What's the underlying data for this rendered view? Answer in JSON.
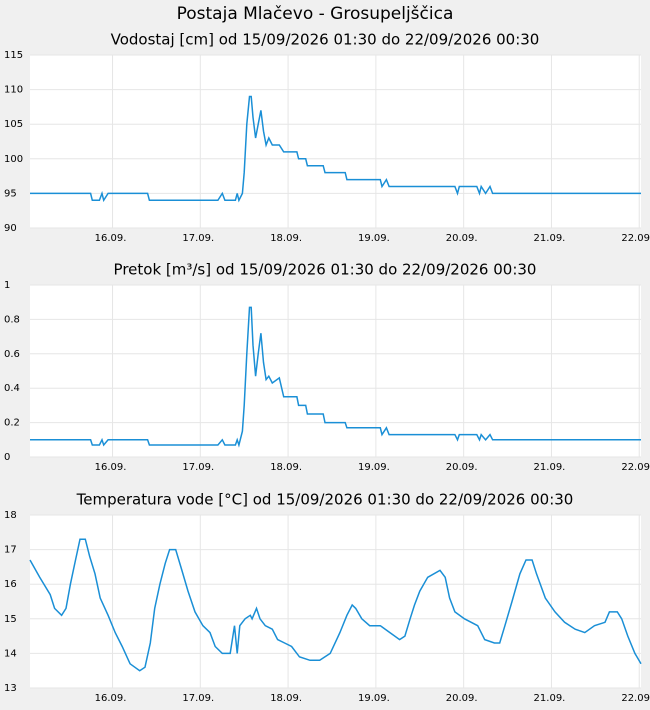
{
  "title": "Postaja Mlačevo - Grosupeljščica",
  "chart_data": [
    {
      "type": "line",
      "title": "Vodostaj [cm] od 15/09/2026 01:30 do 22/09/2026 00:30",
      "x": [
        15.06,
        15.75,
        15.77,
        15.85,
        15.88,
        15.9,
        15.95,
        16.4,
        16.42,
        17.2,
        17.25,
        17.28,
        17.4,
        17.42,
        17.44,
        17.48,
        17.5,
        17.53,
        17.56,
        17.58,
        17.6,
        17.63,
        17.66,
        17.69,
        17.72,
        17.75,
        17.78,
        17.82,
        17.9,
        17.95,
        18.1,
        18.12,
        18.2,
        18.22,
        18.4,
        18.42,
        18.65,
        18.67,
        19.05,
        19.07,
        19.12,
        19.15,
        19.9,
        19.93,
        19.95,
        20.15,
        20.18,
        20.2,
        20.25,
        20.3,
        20.33,
        20.4,
        22.02
      ],
      "values": [
        95,
        95,
        94,
        94,
        95,
        94,
        95,
        95,
        94,
        94,
        95,
        94,
        94,
        95,
        94,
        95,
        98,
        105,
        109,
        109,
        106,
        103,
        105,
        107,
        104,
        102,
        103,
        102,
        102,
        101,
        101,
        100,
        100,
        99,
        99,
        98,
        98,
        97,
        97,
        96,
        97,
        96,
        96,
        95,
        96,
        96,
        95,
        96,
        95,
        96,
        95,
        95,
        95
      ],
      "color": "#1a8fd6",
      "xlim": [
        15.06,
        22.02
      ],
      "ylim": [
        90,
        115
      ],
      "yticks": [
        90,
        95,
        100,
        105,
        110,
        115
      ],
      "xticks": [
        {
          "value": 16,
          "label": "16.09."
        },
        {
          "value": 17,
          "label": "17.09."
        },
        {
          "value": 18,
          "label": "18.09."
        },
        {
          "value": 19,
          "label": "19.09."
        },
        {
          "value": 20,
          "label": "20.09."
        },
        {
          "value": 21,
          "label": "21.09."
        },
        {
          "value": 22,
          "label": "22.09."
        }
      ],
      "grid": true
    },
    {
      "type": "line",
      "title": "Pretok [m³/s] od 15/09/2026 01:30 do 22/09/2026 00:30",
      "x": [
        15.06,
        15.75,
        15.77,
        15.85,
        15.88,
        15.9,
        15.95,
        16.4,
        16.42,
        17.2,
        17.25,
        17.28,
        17.4,
        17.42,
        17.44,
        17.48,
        17.5,
        17.53,
        17.56,
        17.58,
        17.6,
        17.63,
        17.66,
        17.69,
        17.72,
        17.75,
        17.78,
        17.82,
        17.9,
        17.95,
        18.1,
        18.12,
        18.2,
        18.22,
        18.4,
        18.42,
        18.65,
        18.67,
        19.05,
        19.07,
        19.12,
        19.15,
        19.9,
        19.93,
        19.95,
        20.15,
        20.18,
        20.2,
        20.25,
        20.3,
        20.33,
        20.4,
        22.02
      ],
      "values": [
        0.1,
        0.1,
        0.07,
        0.07,
        0.1,
        0.07,
        0.1,
        0.1,
        0.07,
        0.07,
        0.1,
        0.07,
        0.07,
        0.1,
        0.07,
        0.15,
        0.3,
        0.6,
        0.87,
        0.87,
        0.65,
        0.47,
        0.6,
        0.72,
        0.55,
        0.45,
        0.47,
        0.43,
        0.46,
        0.35,
        0.35,
        0.3,
        0.3,
        0.25,
        0.25,
        0.2,
        0.2,
        0.17,
        0.17,
        0.13,
        0.17,
        0.13,
        0.13,
        0.1,
        0.13,
        0.13,
        0.1,
        0.13,
        0.1,
        0.13,
        0.1,
        0.1,
        0.1
      ],
      "color": "#1a8fd6",
      "xlim": [
        15.06,
        22.02
      ],
      "ylim": [
        0,
        1
      ],
      "yticks": [
        0,
        0.2,
        0.4,
        0.6,
        0.8,
        1
      ],
      "xticks": [
        {
          "value": 16,
          "label": "16.09."
        },
        {
          "value": 17,
          "label": "17.09."
        },
        {
          "value": 18,
          "label": "18.09."
        },
        {
          "value": 19,
          "label": "19.09."
        },
        {
          "value": 20,
          "label": "20.09."
        },
        {
          "value": 21,
          "label": "21.09."
        },
        {
          "value": 22,
          "label": "22.09."
        }
      ],
      "grid": true
    },
    {
      "type": "line",
      "title": "Temperatura vode [°C] od 15/09/2026 01:30 do 22/09/2026 00:30",
      "x": [
        15.06,
        15.17,
        15.29,
        15.34,
        15.42,
        15.47,
        15.52,
        15.57,
        15.63,
        15.69,
        15.74,
        15.8,
        15.86,
        15.95,
        16.03,
        16.11,
        16.2,
        16.31,
        16.37,
        16.43,
        16.48,
        16.54,
        16.6,
        16.65,
        16.72,
        16.79,
        16.86,
        16.94,
        17.03,
        17.11,
        17.17,
        17.25,
        17.34,
        17.39,
        17.42,
        17.45,
        17.51,
        17.57,
        17.59,
        17.64,
        17.68,
        17.74,
        17.82,
        17.88,
        17.96,
        18.04,
        18.13,
        18.25,
        18.36,
        18.48,
        18.59,
        18.67,
        18.73,
        18.77,
        18.84,
        18.93,
        19.05,
        19.16,
        19.27,
        19.33,
        19.39,
        19.44,
        19.5,
        19.59,
        19.73,
        19.79,
        19.84,
        19.9,
        20.01,
        20.16,
        20.24,
        20.35,
        20.41,
        20.47,
        20.55,
        20.64,
        20.71,
        20.78,
        20.83,
        20.93,
        21.04,
        21.15,
        21.27,
        21.38,
        21.49,
        21.61,
        21.66,
        21.75,
        21.8,
        21.87,
        21.95,
        22.02
      ],
      "values": [
        16.7,
        16.2,
        15.7,
        15.3,
        15.1,
        15.3,
        16.0,
        16.6,
        17.3,
        17.3,
        16.8,
        16.3,
        15.6,
        15.1,
        14.6,
        14.2,
        13.7,
        13.5,
        13.6,
        14.3,
        15.3,
        16.0,
        16.6,
        17.0,
        17.0,
        16.4,
        15.8,
        15.2,
        14.8,
        14.6,
        14.2,
        14.0,
        14.0,
        14.8,
        14.0,
        14.8,
        15.0,
        15.1,
        15.0,
        15.3,
        15.0,
        14.8,
        14.7,
        14.4,
        14.3,
        14.2,
        13.9,
        13.8,
        13.8,
        14.0,
        14.6,
        15.1,
        15.4,
        15.3,
        15.0,
        14.8,
        14.8,
        14.6,
        14.4,
        14.5,
        15.0,
        15.4,
        15.8,
        16.2,
        16.4,
        16.2,
        15.6,
        15.2,
        15.0,
        14.8,
        14.4,
        14.3,
        14.3,
        14.8,
        15.5,
        16.3,
        16.7,
        16.7,
        16.3,
        15.6,
        15.2,
        14.9,
        14.7,
        14.6,
        14.8,
        14.9,
        15.2,
        15.2,
        15.0,
        14.5,
        14.0,
        13.7
      ],
      "color": "#1a8fd6",
      "xlim": [
        15.06,
        22.02
      ],
      "ylim": [
        13,
        18
      ],
      "yticks": [
        13,
        14,
        15,
        16,
        17,
        18
      ],
      "xticks": [
        {
          "value": 16,
          "label": "16.09."
        },
        {
          "value": 17,
          "label": "17.09."
        },
        {
          "value": 18,
          "label": "18.09."
        },
        {
          "value": 19,
          "label": "19.09."
        },
        {
          "value": 20,
          "label": "20.09."
        },
        {
          "value": 21,
          "label": "21.09."
        },
        {
          "value": 22,
          "label": "22.09."
        }
      ],
      "grid": true
    }
  ]
}
